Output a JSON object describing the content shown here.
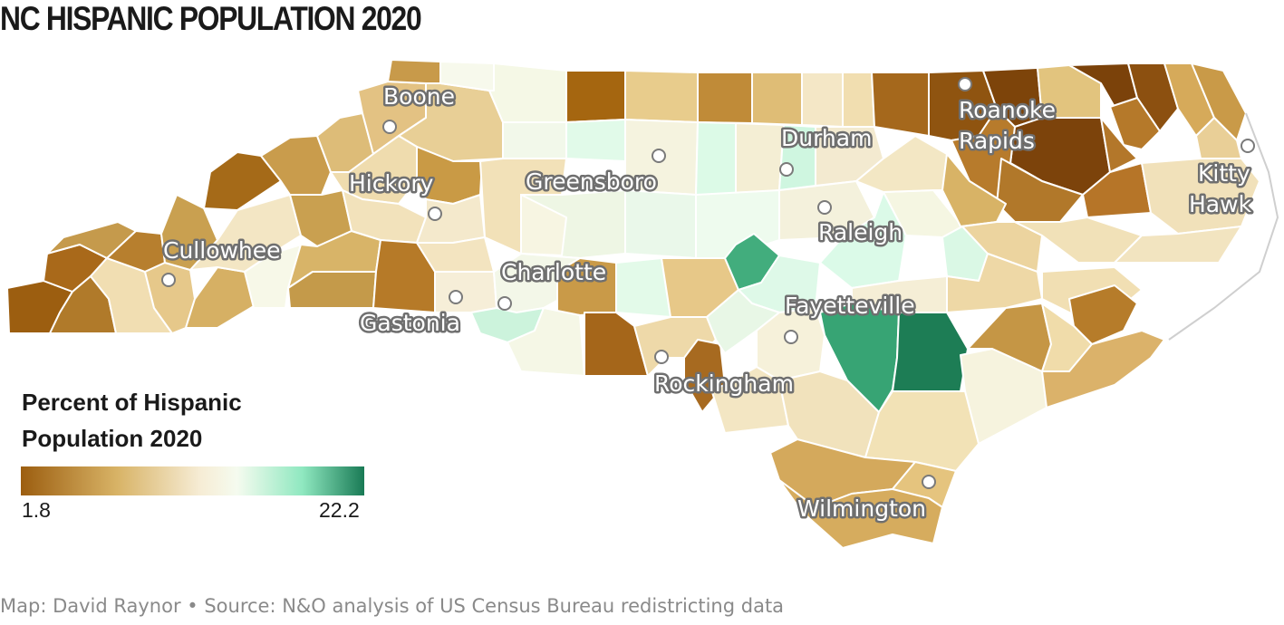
{
  "title": "NC HISPANIC POPULATION 2020",
  "legend": {
    "title_line1": "Percent of Hispanic",
    "title_line2": "Population 2020",
    "min": "1.8",
    "max": "22.2",
    "min_value": 1.8,
    "max_value": 22.2,
    "colors": [
      "#9c5e10",
      "#d8b366",
      "#f6ecd4",
      "#f5fbef",
      "#8fe8c0",
      "#197a55"
    ]
  },
  "cities": [
    {
      "id": "boone",
      "label": "Boone"
    },
    {
      "id": "hickory",
      "label": "Hickory"
    },
    {
      "id": "cullowhee",
      "label": "Cullowhee"
    },
    {
      "id": "gastonia",
      "label": "Gastonia"
    },
    {
      "id": "charlotte",
      "label": "Charlotte"
    },
    {
      "id": "greensboro",
      "label": "Greensboro"
    },
    {
      "id": "durham",
      "label": "Durham"
    },
    {
      "id": "raleigh",
      "label": "Raleigh"
    },
    {
      "id": "fayetteville",
      "label": "Fayetteville"
    },
    {
      "id": "rockingham",
      "label": "Rockingham"
    },
    {
      "id": "wilmington",
      "label": "Wilmington"
    },
    {
      "id": "roanoke-rapids",
      "label": "Roanoke Rapids",
      "line1": "Roanoke",
      "line2": "Rapids"
    },
    {
      "id": "kitty-hawk",
      "label": "Kitty Hawk",
      "line1": "Kitty",
      "line2": "Hawk"
    }
  ],
  "source": "Map: David Raynor • Source: N&O analysis of US Census Bureau redistricting data"
}
